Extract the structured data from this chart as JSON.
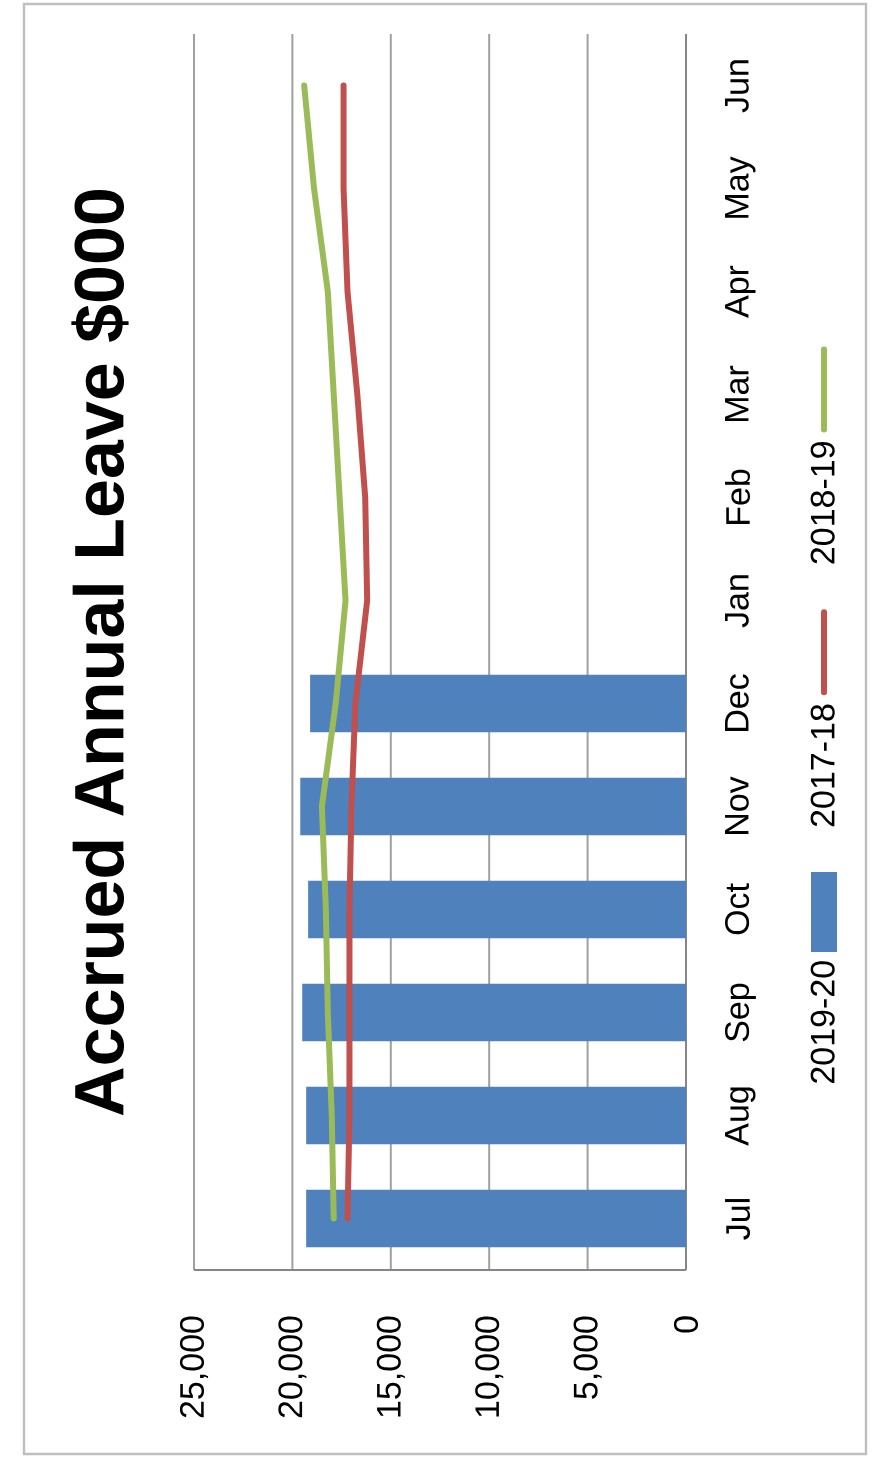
{
  "chart_data": {
    "type": "bar",
    "orientation": "horizontal",
    "title": "Accrued Annual Leave $000",
    "categories": [
      "Jun",
      "May",
      "Apr",
      "Mar",
      "Feb",
      "Jan",
      "Dec",
      "Nov",
      "Oct",
      "Sep",
      "Aug",
      "Jul"
    ],
    "series": [
      {
        "name": "2019-20",
        "color": "#4f81bd",
        "values": [
          null,
          null,
          null,
          null,
          null,
          null,
          19100,
          19600,
          19200,
          19500,
          19300,
          19300
        ]
      },
      {
        "name": "2017-18",
        "type": "line",
        "color": "#c0504d",
        "values": [
          17400,
          17400,
          17200,
          16700,
          16300,
          16200,
          16800,
          17000,
          17100,
          17100,
          17100,
          17200
        ]
      },
      {
        "name": "2018-19",
        "type": "line",
        "color": "#9bbb59",
        "values": [
          19400,
          18900,
          18200,
          17900,
          17600,
          17300,
          17800,
          18500,
          18300,
          18200,
          18000,
          17900
        ]
      }
    ],
    "xlim": [
      25000,
      0
    ],
    "xticks": [
      {
        "value": 25000,
        "label": "25,000"
      },
      {
        "value": 20000,
        "label": "20,000"
      },
      {
        "value": 15000,
        "label": "15,000"
      },
      {
        "value": 10000,
        "label": "10,000"
      },
      {
        "value": 5000,
        "label": "5,000"
      },
      0
    ],
    "grid": "x",
    "legend": "right",
    "marker": "none"
  }
}
